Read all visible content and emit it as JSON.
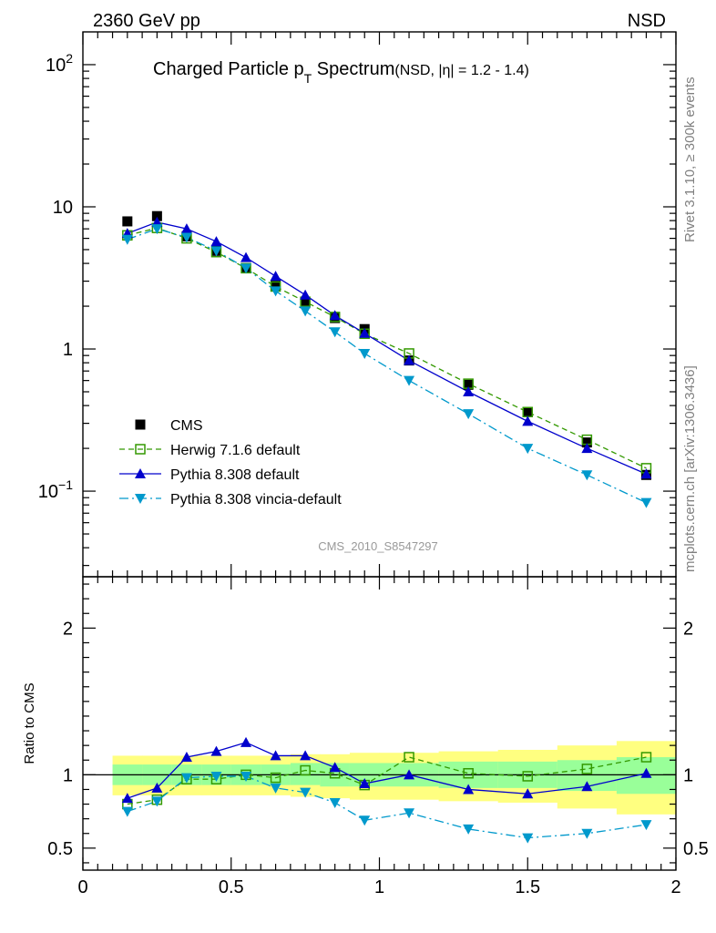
{
  "header": {
    "energy": "2360 GeV pp",
    "process": "NSD"
  },
  "side_labels": {
    "rivet": "Rivet 3.1.10, ≥ 300k events",
    "source": "mcplots.cern.ch [arXiv:1306.3436]"
  },
  "chart_data": [
    {
      "type": "line",
      "title_main": "Charged Particle p",
      "title_sub": "T",
      "title_tail": " Spectrum",
      "title_note": "(NSD, |η| = 1.2 - 1.4)",
      "analysis_id": "CMS_2010_S8547297",
      "yscale": "log",
      "xlim": [
        0,
        2
      ],
      "ylim": [
        0.025,
        170
      ],
      "ytick_labels": [
        "10",
        "10",
        "1",
        "10",
        "10"
      ],
      "ytick_exponents": [
        "-1",
        "",
        "",
        "",
        "2"
      ],
      "legend_position": "center-left",
      "x": [
        0.15,
        0.25,
        0.35,
        0.45,
        0.55,
        0.65,
        0.75,
        0.85,
        0.95,
        1.1,
        1.3,
        1.5,
        1.7,
        1.9
      ],
      "series": [
        {
          "name": "CMS",
          "style": "marker-only",
          "marker": "square-filled",
          "color": "#000000",
          "values": [
            7.9,
            8.6,
            6.2,
            4.9,
            3.7,
            2.8,
            2.1,
            1.65,
            1.38,
            0.83,
            0.56,
            0.36,
            0.22,
            0.13
          ]
        },
        {
          "name": "Herwig 7.1.6 default",
          "style": "dashed",
          "marker": "square-open",
          "color": "#339900",
          "values": [
            6.3,
            7.1,
            6.0,
            4.8,
            3.7,
            2.75,
            2.15,
            1.68,
            1.28,
            0.93,
            0.57,
            0.36,
            0.23,
            0.145
          ]
        },
        {
          "name": "Pythia 8.308 default",
          "style": "solid",
          "marker": "triangle-up",
          "color": "#0000cc",
          "values": [
            6.5,
            7.8,
            7.0,
            5.7,
            4.4,
            3.25,
            2.4,
            1.72,
            1.29,
            0.83,
            0.5,
            0.31,
            0.2,
            0.132
          ]
        },
        {
          "name": "Pythia 8.308 vincia-default",
          "style": "dashdot",
          "marker": "triangle-down",
          "color": "#0099cc",
          "values": [
            5.9,
            7.0,
            6.1,
            4.9,
            3.7,
            2.56,
            1.85,
            1.32,
            0.93,
            0.6,
            0.35,
            0.2,
            0.13,
            0.083
          ]
        }
      ]
    },
    {
      "type": "line",
      "ylabel": "Ratio to CMS",
      "xlim": [
        0,
        2
      ],
      "ylim": [
        0.35,
        2.35
      ],
      "xtick_labels": [
        "0",
        "0.5",
        "1",
        "1.5",
        "2"
      ],
      "ytick_labels": [
        "0.5",
        "1",
        "2"
      ],
      "bands": {
        "bins": [
          [
            0.1,
            0.2
          ],
          [
            0.2,
            0.3
          ],
          [
            0.3,
            0.4
          ],
          [
            0.4,
            0.5
          ],
          [
            0.5,
            0.6
          ],
          [
            0.6,
            0.7
          ],
          [
            0.7,
            0.8
          ],
          [
            0.8,
            0.9
          ],
          [
            0.9,
            1.0
          ],
          [
            1.0,
            1.2
          ],
          [
            1.2,
            1.4
          ],
          [
            1.4,
            1.6
          ],
          [
            1.6,
            1.8
          ],
          [
            1.8,
            2.0
          ]
        ],
        "outer_color": "#ffff80",
        "inner_color": "#99ff99",
        "outer": [
          [
            0.86,
            1.13
          ],
          [
            0.86,
            1.13
          ],
          [
            0.86,
            1.13
          ],
          [
            0.86,
            1.13
          ],
          [
            0.86,
            1.13
          ],
          [
            0.86,
            1.13
          ],
          [
            0.85,
            1.14
          ],
          [
            0.84,
            1.14
          ],
          [
            0.83,
            1.15
          ],
          [
            0.83,
            1.15
          ],
          [
            0.82,
            1.16
          ],
          [
            0.81,
            1.17
          ],
          [
            0.77,
            1.2
          ],
          [
            0.73,
            1.23
          ]
        ],
        "inner": [
          [
            0.93,
            1.07
          ],
          [
            0.93,
            1.07
          ],
          [
            0.93,
            1.07
          ],
          [
            0.93,
            1.07
          ],
          [
            0.93,
            1.07
          ],
          [
            0.93,
            1.07
          ],
          [
            0.93,
            1.08
          ],
          [
            0.92,
            1.08
          ],
          [
            0.92,
            1.08
          ],
          [
            0.92,
            1.08
          ],
          [
            0.91,
            1.09
          ],
          [
            0.91,
            1.09
          ],
          [
            0.89,
            1.1
          ],
          [
            0.87,
            1.12
          ]
        ]
      },
      "x": [
        0.15,
        0.25,
        0.35,
        0.45,
        0.55,
        0.65,
        0.75,
        0.85,
        0.95,
        1.1,
        1.3,
        1.5,
        1.7,
        1.9
      ],
      "series": [
        {
          "name": "Herwig 7.1.6 default",
          "style": "dashed",
          "marker": "square-open",
          "color": "#339900",
          "values": [
            0.8,
            0.83,
            0.97,
            0.97,
            1.0,
            0.98,
            1.03,
            1.01,
            0.93,
            1.12,
            1.01,
            0.99,
            1.04,
            1.12
          ]
        },
        {
          "name": "Pythia 8.308 default",
          "style": "solid",
          "marker": "triangle-up",
          "color": "#0000cc",
          "values": [
            0.84,
            0.91,
            1.12,
            1.16,
            1.22,
            1.13,
            1.13,
            1.05,
            0.94,
            1.0,
            0.9,
            0.87,
            0.92,
            1.01
          ]
        },
        {
          "name": "Pythia 8.308 vincia-default",
          "style": "dashdot",
          "marker": "triangle-down",
          "color": "#0099cc",
          "values": [
            0.75,
            0.82,
            0.98,
            0.99,
            0.99,
            0.91,
            0.88,
            0.81,
            0.69,
            0.74,
            0.63,
            0.57,
            0.6,
            0.66
          ]
        }
      ]
    }
  ]
}
